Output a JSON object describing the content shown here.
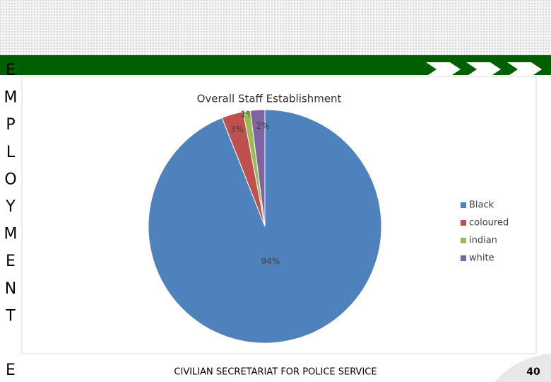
{
  "chart_data": {
    "type": "pie",
    "title": "Overall Staff Establishment",
    "categories": [
      "Black",
      "coloured",
      "indian",
      "white"
    ],
    "values": [
      94,
      3,
      1,
      2
    ],
    "value_labels": [
      "94%",
      "3%",
      "1%",
      "2%"
    ],
    "colors": [
      "#4f81bd",
      "#c0504d",
      "#9bbb59",
      "#8064a2"
    ],
    "legend": "right"
  },
  "slide": {
    "side_letters": [
      "E",
      "M",
      "P",
      "L",
      "O",
      "Y",
      "M",
      "E",
      "N",
      "T"
    ],
    "bottom_letter": "E",
    "footer": "CIVILIAN SECRETARIAT FOR POLICE SERVICE",
    "page_number": "40"
  }
}
